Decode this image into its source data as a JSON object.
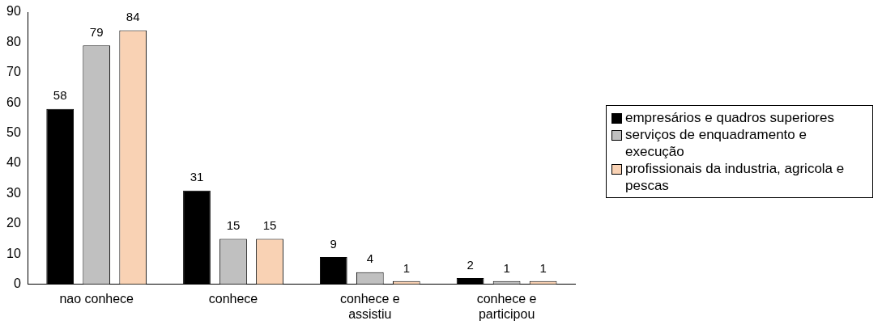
{
  "chart_data": {
    "type": "bar",
    "categories": [
      "nao conhece",
      "conhece",
      "conhece e assistiu",
      "conhece e participou"
    ],
    "series": [
      {
        "name": "empresários e quadros superiores",
        "color": "#000000",
        "values": [
          58,
          31,
          9,
          2
        ]
      },
      {
        "name": "serviços de enquadramento e execução",
        "color": "#c0c0c0",
        "values": [
          79,
          15,
          4,
          1
        ]
      },
      {
        "name": "profissionais da industria, agricola e pescas",
        "color": "#f9d2b4",
        "values": [
          84,
          15,
          1,
          1
        ]
      }
    ],
    "ylim": [
      0,
      90
    ],
    "yticks": [
      0,
      10,
      20,
      30,
      40,
      50,
      60,
      70,
      80,
      90
    ],
    "grid": false,
    "legend": "right",
    "data_labels": true
  }
}
